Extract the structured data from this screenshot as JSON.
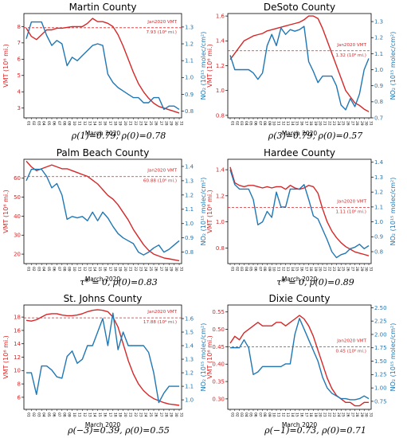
{
  "x_axis_label": "March 2020",
  "days": [
    "01",
    "02",
    "03",
    "04",
    "05",
    "06",
    "07",
    "08",
    "09",
    "10",
    "11",
    "12",
    "13",
    "14",
    "15",
    "16",
    "17",
    "18",
    "19",
    "20",
    "21",
    "22",
    "23",
    "24",
    "25",
    "26",
    "27",
    "28",
    "29",
    "30",
    "31"
  ],
  "colors": {
    "vmt": "#d62728",
    "no2": "#1f77b4"
  },
  "chart_data": [
    {
      "type": "line",
      "title": "Martin County",
      "caption": "ρ(1)=0.79,  ρ(0)=0.78",
      "ylabel_left": "VMT (10⁶ mi.)",
      "ylabel_right": "NO₂ (10¹⁵ molec/cm²)",
      "ylim_left": [
        2.4,
        8.8
      ],
      "yticks_left": [
        3,
        4,
        5,
        6,
        7,
        8
      ],
      "ylim_right": [
        0.76,
        1.38
      ],
      "yticks_right": [
        0.8,
        0.9,
        1.0,
        1.1,
        1.2,
        1.3
      ],
      "series": [
        {
          "name": "VMT",
          "axis": "left",
          "values": [
            7.9,
            7.4,
            7.2,
            7.5,
            7.8,
            7.8,
            7.9,
            7.9,
            7.95,
            8.0,
            8.0,
            8.0,
            8.2,
            8.5,
            8.3,
            8.3,
            8.2,
            8.0,
            7.5,
            6.8,
            6.0,
            5.2,
            4.5,
            4.0,
            3.6,
            3.3,
            3.1,
            3.0,
            2.9,
            2.8,
            2.7
          ]
        },
        {
          "name": "NO₂",
          "axis": "right",
          "values": [
            1.23,
            1.33,
            1.33,
            1.33,
            1.25,
            1.19,
            1.22,
            1.2,
            1.07,
            1.12,
            1.1,
            1.13,
            1.16,
            1.19,
            1.2,
            1.19,
            1.02,
            0.97,
            0.94,
            0.92,
            0.9,
            0.88,
            0.88,
            0.85,
            0.85,
            0.88,
            0.88,
            0.81,
            0.83,
            0.83,
            0.81
          ]
        }
      ],
      "reference": {
        "label": "Jan2020 VMT",
        "value_label": "7.93 (10⁶ mi.)",
        "value": 7.93
      }
    },
    {
      "type": "line",
      "title": "DeSoto County",
      "caption": "ρ(3)=0.79,  ρ(0)=0.57",
      "ylabel_left": "VMT (10⁶ mi.)",
      "ylabel_right": "NO₂ (10¹⁵ molec/cm²)",
      "ylim_left": [
        0.78,
        1.62
      ],
      "yticks_left": [
        0.8,
        1.0,
        1.2,
        1.4,
        1.6
      ],
      "ylim_right": [
        0.7,
        1.35
      ],
      "yticks_right": [
        0.7,
        0.8,
        0.9,
        1.0,
        1.1,
        1.2,
        1.3
      ],
      "series": [
        {
          "name": "VMT",
          "axis": "left",
          "values": [
            1.25,
            1.3,
            1.35,
            1.4,
            1.42,
            1.44,
            1.45,
            1.46,
            1.48,
            1.49,
            1.5,
            1.51,
            1.52,
            1.53,
            1.54,
            1.55,
            1.57,
            1.6,
            1.6,
            1.58,
            1.5,
            1.4,
            1.3,
            1.2,
            1.1,
            1.0,
            0.95,
            0.9,
            0.88,
            0.85,
            0.83
          ]
        },
        {
          "name": "NO₂",
          "axis": "right",
          "values": [
            1.09,
            1.0,
            1.0,
            1.0,
            1.0,
            0.98,
            0.94,
            0.98,
            1.15,
            1.22,
            1.15,
            1.26,
            1.22,
            1.25,
            1.24,
            1.25,
            1.27,
            1.05,
            0.99,
            0.92,
            0.96,
            0.96,
            0.96,
            0.9,
            0.78,
            0.75,
            0.82,
            0.77,
            0.85,
            1.0,
            1.07
          ]
        }
      ],
      "reference": {
        "label": "Jan2020 VMT",
        "value_label": "1.32 (10⁶ mi.)",
        "value": 1.32
      }
    },
    {
      "type": "line",
      "title": "Palm Beach County",
      "caption": "τ* = 0, ρ(0)=0.83",
      "ylabel_left": "VMT (10⁶ mi.)",
      "ylabel_right": "NO₂ (10¹⁵ molec/cm²)",
      "ylim_left": [
        15,
        70
      ],
      "yticks_left": [
        20,
        30,
        40,
        50,
        60
      ],
      "ylim_right": [
        0.72,
        1.45
      ],
      "yticks_right": [
        0.8,
        0.9,
        1.0,
        1.1,
        1.2,
        1.3,
        1.4
      ],
      "series": [
        {
          "name": "VMT",
          "axis": "left",
          "values": [
            69,
            66,
            64,
            65,
            66,
            67,
            66,
            65,
            65,
            64,
            63,
            62,
            61,
            59,
            57,
            54,
            51,
            49,
            46,
            42,
            38,
            33,
            29,
            25,
            22,
            20,
            19,
            18,
            17.5,
            17,
            16.5
          ]
        },
        {
          "name": "NO₂",
          "axis": "right",
          "values": [
            1.3,
            1.38,
            1.38,
            1.38,
            1.33,
            1.25,
            1.28,
            1.2,
            1.03,
            1.05,
            1.04,
            1.05,
            1.02,
            1.08,
            1.02,
            1.08,
            1.04,
            0.98,
            0.93,
            0.9,
            0.88,
            0.86,
            0.8,
            0.78,
            0.8,
            0.83,
            0.85,
            0.8,
            0.82,
            0.85,
            0.88
          ]
        }
      ],
      "reference": {
        "label": "Jan2020 VMT",
        "value_label": "60.88 (10⁶ mi.)",
        "value": 60.88
      }
    },
    {
      "type": "line",
      "title": "Hardee County",
      "caption": "τ* = 0, ρ(0)=0.89",
      "ylabel_left": "VMT (10⁶ mi.)",
      "ylabel_right": "NO₂ (10¹⁵ molec/cm²)",
      "ylim_left": [
        0.68,
        1.48
      ],
      "yticks_left": [
        0.8,
        1.0,
        1.2,
        1.4
      ],
      "ylim_right": [
        0.72,
        1.42
      ],
      "yticks_right": [
        0.8,
        0.9,
        1.0,
        1.1,
        1.2,
        1.3,
        1.4
      ],
      "series": [
        {
          "name": "VMT",
          "axis": "left",
          "values": [
            1.42,
            1.3,
            1.28,
            1.27,
            1.28,
            1.28,
            1.27,
            1.26,
            1.27,
            1.26,
            1.27,
            1.27,
            1.25,
            1.28,
            1.26,
            1.25,
            1.26,
            1.28,
            1.27,
            1.22,
            1.1,
            1.0,
            0.93,
            0.88,
            0.84,
            0.81,
            0.79,
            0.77,
            0.76,
            0.75,
            0.74
          ]
        },
        {
          "name": "NO₂",
          "axis": "right",
          "values": [
            1.35,
            1.25,
            1.22,
            1.22,
            1.22,
            1.15,
            0.98,
            1.0,
            1.07,
            1.03,
            1.2,
            1.1,
            1.1,
            1.22,
            1.22,
            1.22,
            1.25,
            1.15,
            1.04,
            1.02,
            0.95,
            0.88,
            0.8,
            0.76,
            0.78,
            0.79,
            0.82,
            0.83,
            0.85,
            0.82,
            0.84
          ]
        }
      ],
      "reference": {
        "label": "Jan2020 VMT",
        "value_label": "1.11 (10⁶ mi.)",
        "value": 1.11
      }
    },
    {
      "type": "line",
      "title": "St. Johns County",
      "caption": "ρ(−3)=0.39,  ρ(0)=0.55",
      "ylabel_left": "VMT (10⁶ mi.)",
      "ylabel_right": "NO₂ (10¹⁵ molec/cm²)",
      "ylim_left": [
        4.2,
        19.8
      ],
      "yticks_left": [
        6,
        8,
        10,
        12,
        14,
        16,
        18
      ],
      "ylim_right": [
        0.93,
        1.7
      ],
      "yticks_right": [
        1.0,
        1.1,
        1.2,
        1.3,
        1.4,
        1.5,
        1.6
      ],
      "series": [
        {
          "name": "VMT",
          "axis": "left",
          "values": [
            17.5,
            17.4,
            17.6,
            18.0,
            18.4,
            18.5,
            18.5,
            18.3,
            18.2,
            18.2,
            18.3,
            18.5,
            18.8,
            19.0,
            19.1,
            19.0,
            18.8,
            18.0,
            16.5,
            14.0,
            11.5,
            9.5,
            8.0,
            7.0,
            6.3,
            5.8,
            5.5,
            5.2,
            5.0,
            4.9,
            4.8
          ]
        },
        {
          "name": "NO₂",
          "axis": "right",
          "values": [
            1.2,
            1.2,
            1.04,
            1.25,
            1.25,
            1.22,
            1.17,
            1.16,
            1.32,
            1.36,
            1.27,
            1.3,
            1.4,
            1.4,
            1.5,
            1.6,
            1.4,
            1.64,
            1.37,
            1.5,
            1.4,
            1.4,
            1.4,
            1.4,
            1.35,
            1.2,
            0.98,
            1.05,
            1.1,
            1.1,
            1.1
          ]
        }
      ],
      "reference": {
        "label": "Jan2020 VMT",
        "value_label": "17.88 (10⁶ mi.)",
        "value": 17.88
      }
    },
    {
      "type": "line",
      "title": "Dixie County",
      "caption": "ρ(−1)=0.73,  ρ(0)=0.71",
      "ylabel_left": "VMT (10⁶ mi.)",
      "ylabel_right": "NO₂ (10¹⁵ molec/cm²)",
      "ylim_left": [
        0.27,
        0.57
      ],
      "yticks_left": [
        0.3,
        0.35,
        0.4,
        0.45,
        0.5,
        0.55
      ],
      "ylim_right": [
        0.6,
        2.55
      ],
      "yticks_right": [
        0.75,
        1.0,
        1.25,
        1.5,
        1.75,
        2.0,
        2.25,
        2.5
      ],
      "series": [
        {
          "name": "VMT",
          "axis": "left",
          "values": [
            0.46,
            0.48,
            0.47,
            0.49,
            0.5,
            0.51,
            0.52,
            0.51,
            0.51,
            0.51,
            0.52,
            0.52,
            0.51,
            0.52,
            0.53,
            0.54,
            0.53,
            0.51,
            0.48,
            0.44,
            0.4,
            0.36,
            0.33,
            0.31,
            0.3,
            0.29,
            0.29,
            0.28,
            0.28,
            0.29,
            0.29
          ]
        },
        {
          "name": "NO₂",
          "axis": "right",
          "values": [
            1.75,
            1.75,
            1.75,
            1.9,
            1.75,
            1.25,
            1.3,
            1.4,
            1.4,
            1.4,
            1.4,
            1.4,
            1.45,
            1.45,
            2.0,
            2.3,
            2.1,
            1.9,
            1.7,
            1.5,
            1.2,
            1.0,
            0.9,
            0.85,
            0.8,
            0.8,
            0.78,
            0.78,
            0.8,
            0.85,
            0.8
          ]
        }
      ],
      "reference": {
        "label": "Jan2020 VMT",
        "value_label": "0.45 (10⁶ mi.)",
        "value": 0.45
      }
    }
  ]
}
